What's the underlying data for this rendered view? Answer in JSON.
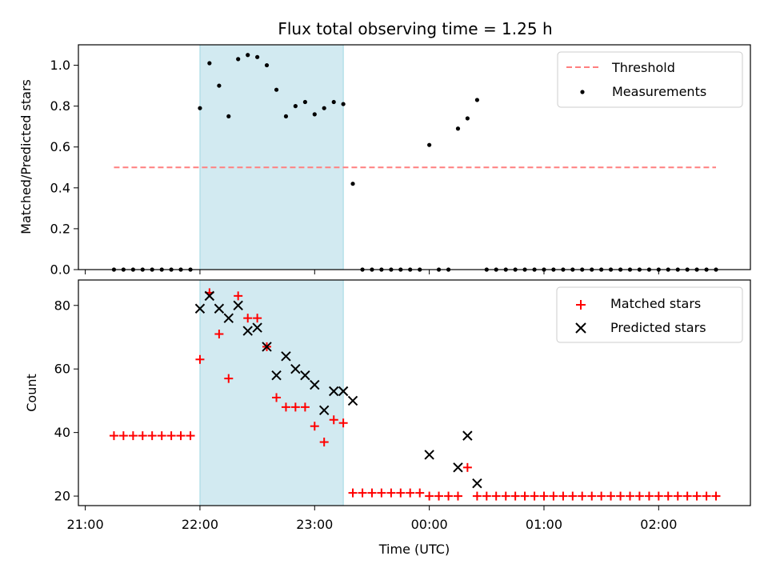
{
  "chart_data": {
    "type": "scatter",
    "title": "Flux total observing time = 1.25 h",
    "xlabel": "Time (UTC)",
    "x_ticks": [
      "21:00",
      "22:00",
      "23:00",
      "00:00",
      "01:00",
      "02:00"
    ],
    "x_tick_hours": [
      21,
      22,
      23,
      24,
      25,
      26
    ],
    "x_range_hours": [
      20.94,
      26.8
    ],
    "highlight_span_hours": [
      22.0,
      23.25
    ],
    "highlight_color": "#add8e6",
    "panels": [
      {
        "ylabel": "Matched/Predicted stars",
        "ylim": [
          0,
          1.1
        ],
        "y_ticks": [
          0.0,
          0.2,
          0.4,
          0.6,
          0.8,
          1.0
        ],
        "legend_position": "top-right",
        "threshold": {
          "name": "Threshold",
          "value": 0.5,
          "x_range_hours": [
            21.25,
            26.5
          ],
          "color": "#ff7f7f"
        },
        "series": [
          {
            "name": "Measurements",
            "color": "#000000",
            "x": [
              21.25,
              21.333,
              21.417,
              21.5,
              21.583,
              21.667,
              21.75,
              21.833,
              21.917,
              22.0,
              22.083,
              22.167,
              22.25,
              22.333,
              22.417,
              22.5,
              22.583,
              22.667,
              22.75,
              22.833,
              22.917,
              23.0,
              23.083,
              23.167,
              23.25,
              23.333,
              23.417,
              23.5,
              23.583,
              23.667,
              23.75,
              23.833,
              23.917,
              24.0,
              24.083,
              24.167,
              24.25,
              24.333,
              24.417,
              24.5,
              24.583,
              24.667,
              24.75,
              24.833,
              24.917,
              25.0,
              25.083,
              25.167,
              25.25,
              25.333,
              25.417,
              25.5,
              25.583,
              25.667,
              25.75,
              25.833,
              25.917,
              26.0,
              26.083,
              26.167,
              26.25,
              26.333,
              26.417,
              26.5
            ],
            "y": [
              0,
              0,
              0,
              0,
              0,
              0,
              0,
              0,
              0,
              0.79,
              1.01,
              0.9,
              0.75,
              1.03,
              1.05,
              1.04,
              1.0,
              0.88,
              0.75,
              0.8,
              0.82,
              0.76,
              0.79,
              0.82,
              0.81,
              0.42,
              0,
              0,
              0,
              0,
              0,
              0,
              0,
              0.61,
              0,
              0,
              0.69,
              0.74,
              0.83,
              0,
              0,
              0,
              0,
              0,
              0,
              0,
              0,
              0,
              0,
              0,
              0,
              0,
              0,
              0,
              0,
              0,
              0,
              0,
              0,
              0,
              0,
              0,
              0,
              0
            ]
          }
        ]
      },
      {
        "ylabel": "Count",
        "ylim": [
          17,
          88
        ],
        "y_ticks": [
          20,
          40,
          60,
          80
        ],
        "legend_position": "top-right",
        "series": [
          {
            "name": "Matched stars",
            "color": "#ff0000",
            "marker": "plus",
            "x": [
              21.25,
              21.333,
              21.417,
              21.5,
              21.583,
              21.667,
              21.75,
              21.833,
              21.917,
              22.0,
              22.083,
              22.167,
              22.25,
              22.333,
              22.417,
              22.5,
              22.583,
              22.667,
              22.75,
              22.833,
              22.917,
              23.0,
              23.083,
              23.167,
              23.25,
              23.333,
              23.417,
              23.5,
              23.583,
              23.667,
              23.75,
              23.833,
              23.917,
              24.0,
              24.083,
              24.167,
              24.25,
              24.333,
              24.417,
              24.5,
              24.583,
              24.667,
              24.75,
              24.833,
              24.917,
              25.0,
              25.083,
              25.167,
              25.25,
              25.333,
              25.417,
              25.5,
              25.583,
              25.667,
              25.75,
              25.833,
              25.917,
              26.0,
              26.083,
              26.167,
              26.25,
              26.333,
              26.417,
              26.5
            ],
            "y": [
              39,
              39,
              39,
              39,
              39,
              39,
              39,
              39,
              39,
              63,
              84,
              71,
              57,
              83,
              76,
              76,
              67,
              51,
              48,
              48,
              48,
              42,
              37,
              44,
              43,
              21,
              21,
              21,
              21,
              21,
              21,
              21,
              21,
              20,
              20,
              20,
              20,
              29,
              20,
              20,
              20,
              20,
              20,
              20,
              20,
              20,
              20,
              20,
              20,
              20,
              20,
              20,
              20,
              20,
              20,
              20,
              20,
              20,
              20,
              20,
              20,
              20,
              20,
              20
            ]
          },
          {
            "name": "Predicted stars",
            "color": "#000000",
            "marker": "x",
            "x": [
              22.0,
              22.083,
              22.167,
              22.25,
              22.333,
              22.417,
              22.5,
              22.583,
              22.667,
              22.75,
              22.833,
              22.917,
              23.0,
              23.083,
              23.167,
              23.25,
              23.333,
              24.0,
              24.25,
              24.333,
              24.417
            ],
            "y": [
              79,
              83,
              79,
              76,
              80,
              72,
              73,
              67,
              58,
              64,
              60,
              58,
              55,
              47,
              53,
              53,
              50,
              33,
              29,
              39,
              24
            ]
          }
        ]
      }
    ]
  }
}
